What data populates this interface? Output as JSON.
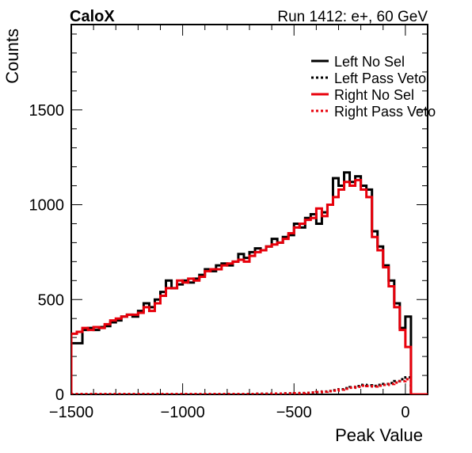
{
  "header": {
    "experiment": "CaloX",
    "run_info": "Run 1412: e+, 60 GeV"
  },
  "chart_data": {
    "type": "line",
    "step": true,
    "title": "",
    "xlabel": "Peak Value",
    "ylabel": "Counts",
    "xlim": [
      -1500,
      100
    ],
    "ylim": [
      0,
      1950
    ],
    "x_ticks": [
      {
        "value": -1500,
        "label": "−1500"
      },
      {
        "value": -1000,
        "label": "−1000"
      },
      {
        "value": -500,
        "label": "−500"
      },
      {
        "value": 0,
        "label": "0"
      }
    ],
    "y_ticks": [
      {
        "value": 0,
        "label": "0"
      },
      {
        "value": 500,
        "label": "500"
      },
      {
        "value": 1000,
        "label": "1000"
      },
      {
        "value": 1500,
        "label": "1500"
      }
    ],
    "bin_start": -1500,
    "bin_width": 25,
    "legend_position": "top-right",
    "series": [
      {
        "name": "Left No Sel",
        "color": "#000000",
        "style": "solid",
        "values": [
          270,
          270,
          340,
          350,
          340,
          355,
          360,
          380,
          390,
          410,
          420,
          410,
          440,
          480,
          460,
          500,
          540,
          600,
          560,
          580,
          600,
          590,
          610,
          630,
          660,
          650,
          680,
          690,
          680,
          700,
          740,
          720,
          750,
          770,
          760,
          780,
          820,
          800,
          830,
          840,
          900,
          880,
          930,
          950,
          900,
          960,
          1000,
          1140,
          1100,
          1170,
          1120,
          1150,
          1100,
          1080,
          860,
          780,
          680,
          600,
          480,
          350,
          410,
          0,
          0,
          0
        ]
      },
      {
        "name": "Left Pass Veto",
        "color": "#000000",
        "style": "dotted",
        "values": [
          2,
          2,
          2,
          2,
          2,
          2,
          2,
          2,
          2,
          2,
          2,
          2,
          2,
          2,
          2,
          2,
          2,
          2,
          2,
          2,
          2,
          2,
          2,
          2,
          2,
          2,
          2,
          2,
          2,
          2,
          2,
          2,
          2,
          3,
          3,
          3,
          4,
          4,
          5,
          5,
          6,
          7,
          8,
          10,
          12,
          15,
          18,
          22,
          27,
          33,
          38,
          44,
          50,
          48,
          45,
          50,
          55,
          60,
          70,
          80,
          90,
          0,
          0,
          0
        ]
      },
      {
        "name": "Right No Sel",
        "color": "#e8000b",
        "style": "solid",
        "values": [
          320,
          330,
          350,
          340,
          355,
          350,
          370,
          390,
          400,
          410,
          420,
          420,
          430,
          460,
          440,
          480,
          520,
          560,
          560,
          600,
          590,
          610,
          600,
          620,
          650,
          660,
          660,
          680,
          690,
          700,
          710,
          700,
          730,
          750,
          760,
          780,
          790,
          800,
          820,
          850,
          880,
          900,
          920,
          930,
          980,
          940,
          1000,
          1040,
          1080,
          1120,
          1100,
          1130,
          1080,
          1040,
          830,
          760,
          670,
          570,
          460,
          340,
          250,
          0,
          0,
          0
        ]
      },
      {
        "name": "Right Pass Veto",
        "color": "#e8000b",
        "style": "dotted",
        "values": [
          2,
          2,
          2,
          2,
          2,
          2,
          2,
          2,
          2,
          2,
          2,
          2,
          2,
          2,
          2,
          2,
          2,
          2,
          2,
          2,
          2,
          2,
          2,
          2,
          2,
          2,
          2,
          2,
          2,
          2,
          2,
          2,
          2,
          3,
          3,
          3,
          4,
          4,
          5,
          5,
          6,
          7,
          8,
          10,
          12,
          14,
          17,
          20,
          25,
          30,
          35,
          40,
          46,
          44,
          42,
          46,
          50,
          55,
          62,
          70,
          80,
          0,
          0,
          0
        ]
      }
    ]
  }
}
